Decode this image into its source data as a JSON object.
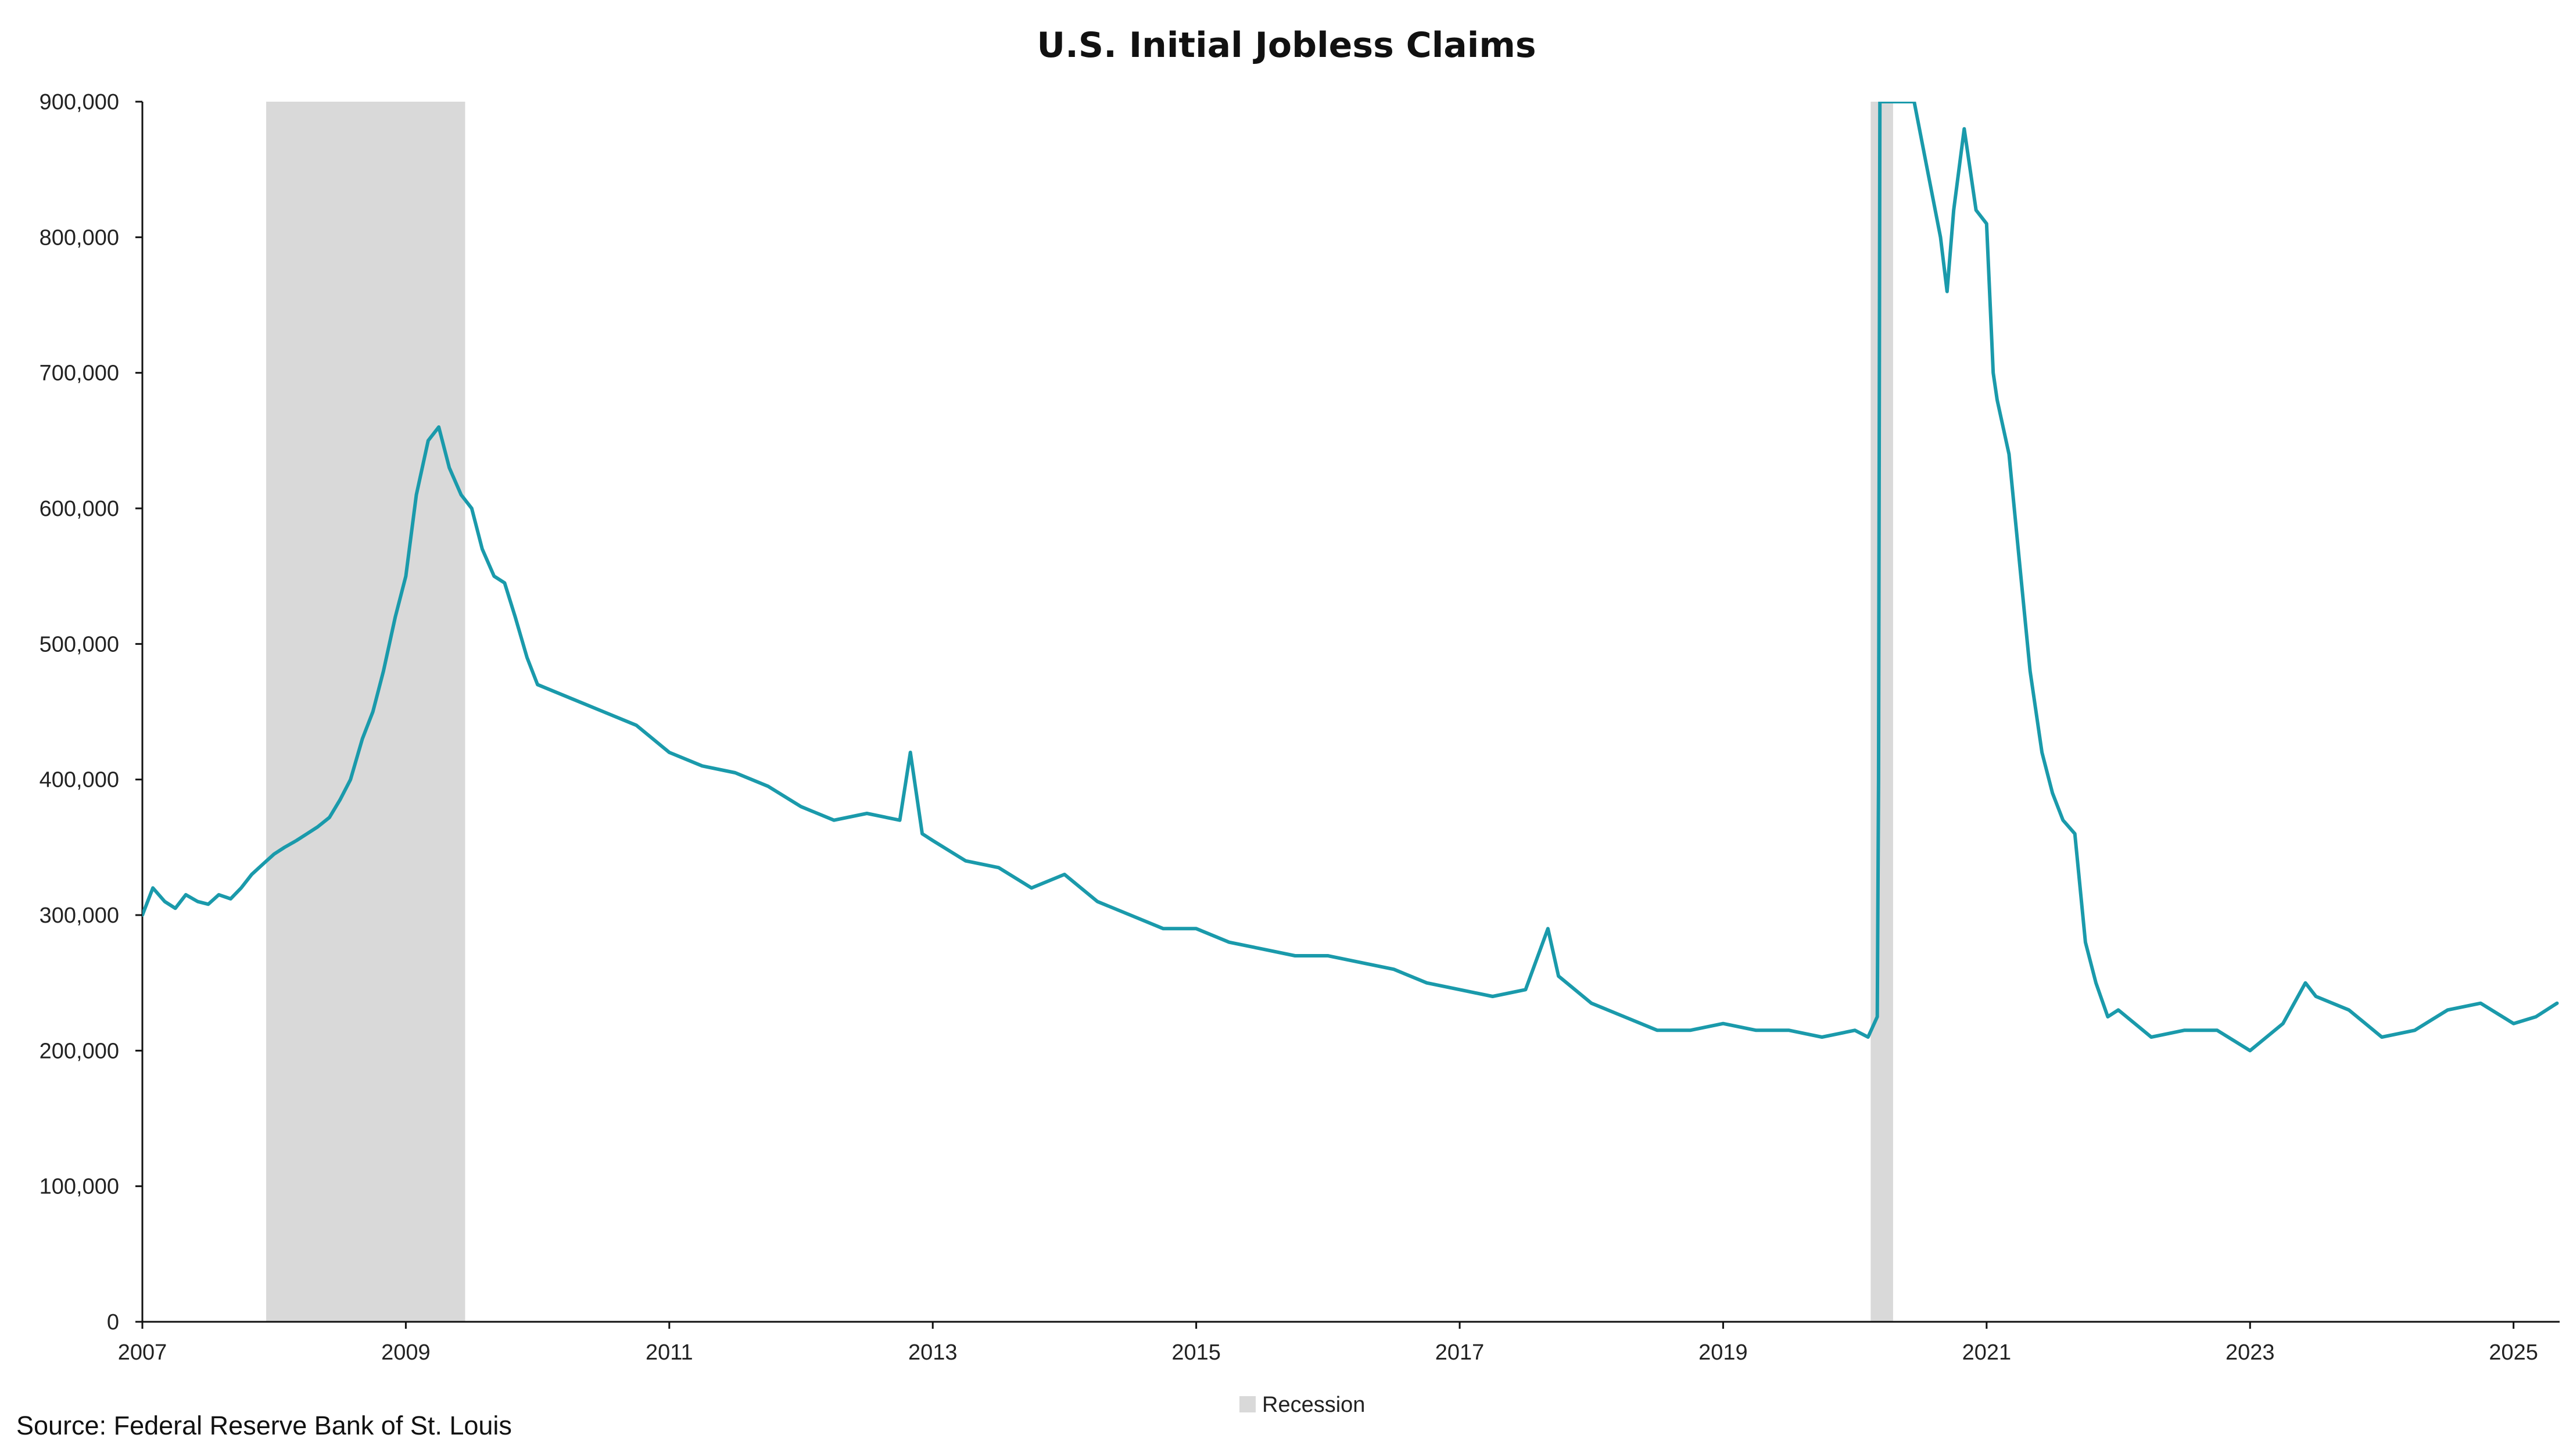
{
  "source": "Source: Federal Reserve Bank of St. Louis",
  "chart_data": {
    "type": "line",
    "title": "U.S. Initial Jobless Claims",
    "xlabel": "",
    "ylabel": "",
    "xlim": [
      2007.0,
      2025.35
    ],
    "ylim": [
      0,
      900000
    ],
    "y_ticks": [
      0,
      100000,
      200000,
      300000,
      400000,
      500000,
      600000,
      700000,
      800000,
      900000
    ],
    "y_tick_labels": [
      "0",
      "100,000",
      "200,000",
      "300,000",
      "400,000",
      "500,000",
      "600,000",
      "700,000",
      "800,000",
      "900,000"
    ],
    "x_ticks": [
      2007,
      2009,
      2011,
      2013,
      2015,
      2017,
      2019,
      2021,
      2023,
      2025
    ],
    "x_tick_labels": [
      "2007",
      "2009",
      "2011",
      "2013",
      "2015",
      "2017",
      "2019",
      "2021",
      "2023",
      "2025"
    ],
    "grid": false,
    "legend": {
      "position": "bottom-center",
      "items": [
        {
          "label": "Recession",
          "color": "#d9d9d9"
        }
      ]
    },
    "recessions": [
      {
        "start": 2007.94,
        "end": 2009.45
      },
      {
        "start": 2020.12,
        "end": 2020.29
      }
    ],
    "series": [
      {
        "color": "#1a9aab",
        "x": [
          2007.0,
          2007.08,
          2007.17,
          2007.25,
          2007.33,
          2007.42,
          2007.5,
          2007.58,
          2007.67,
          2007.75,
          2007.83,
          2007.92,
          2008.0,
          2008.08,
          2008.17,
          2008.25,
          2008.33,
          2008.42,
          2008.5,
          2008.58,
          2008.67,
          2008.75,
          2008.83,
          2008.92,
          2009.0,
          2009.08,
          2009.17,
          2009.25,
          2009.33,
          2009.42,
          2009.5,
          2009.58,
          2009.67,
          2009.75,
          2009.83,
          2009.92,
          2010.0,
          2010.25,
          2010.5,
          2010.75,
          2011.0,
          2011.25,
          2011.5,
          2011.75,
          2012.0,
          2012.25,
          2012.5,
          2012.75,
          2012.83,
          2012.92,
          2013.0,
          2013.25,
          2013.5,
          2013.75,
          2014.0,
          2014.25,
          2014.5,
          2014.75,
          2015.0,
          2015.25,
          2015.5,
          2015.75,
          2016.0,
          2016.25,
          2016.5,
          2016.75,
          2017.0,
          2017.25,
          2017.5,
          2017.67,
          2017.75,
          2018.0,
          2018.25,
          2018.5,
          2018.75,
          2019.0,
          2019.25,
          2019.5,
          2019.75,
          2020.0,
          2020.1,
          2020.17,
          2020.18,
          2020.19,
          2020.2,
          2020.45,
          2020.55,
          2020.65,
          2020.7,
          2020.75,
          2020.83,
          2020.92,
          2021.0,
          2021.05,
          2021.08,
          2021.17,
          2021.25,
          2021.33,
          2021.42,
          2021.5,
          2021.58,
          2021.67,
          2021.75,
          2021.83,
          2021.92,
          2022.0,
          2022.25,
          2022.5,
          2022.75,
          2023.0,
          2023.25,
          2023.42,
          2023.5,
          2023.75,
          2024.0,
          2024.25,
          2024.5,
          2024.75,
          2025.0,
          2025.17,
          2025.33
        ],
        "y": [
          300000,
          320000,
          310000,
          305000,
          315000,
          310000,
          308000,
          315000,
          312000,
          320000,
          330000,
          338000,
          345000,
          350000,
          355000,
          360000,
          365000,
          372000,
          385000,
          400000,
          430000,
          450000,
          480000,
          520000,
          550000,
          610000,
          650000,
          660000,
          630000,
          610000,
          600000,
          570000,
          550000,
          545000,
          520000,
          490000,
          470000,
          460000,
          450000,
          440000,
          420000,
          410000,
          405000,
          395000,
          380000,
          370000,
          375000,
          370000,
          420000,
          360000,
          355000,
          340000,
          335000,
          320000,
          330000,
          310000,
          300000,
          290000,
          290000,
          280000,
          275000,
          270000,
          270000,
          265000,
          260000,
          250000,
          245000,
          240000,
          245000,
          290000,
          255000,
          235000,
          225000,
          215000,
          215000,
          220000,
          215000,
          215000,
          210000,
          215000,
          210000,
          225000,
          400000,
          900000,
          900000,
          900000,
          850000,
          800000,
          760000,
          820000,
          880000,
          820000,
          810000,
          700000,
          680000,
          640000,
          560000,
          480000,
          420000,
          390000,
          370000,
          360000,
          280000,
          250000,
          225000,
          230000,
          210000,
          215000,
          215000,
          200000,
          220000,
          250000,
          240000,
          230000,
          210000,
          215000,
          230000,
          235000,
          220000,
          225000,
          235000
        ]
      }
    ]
  }
}
